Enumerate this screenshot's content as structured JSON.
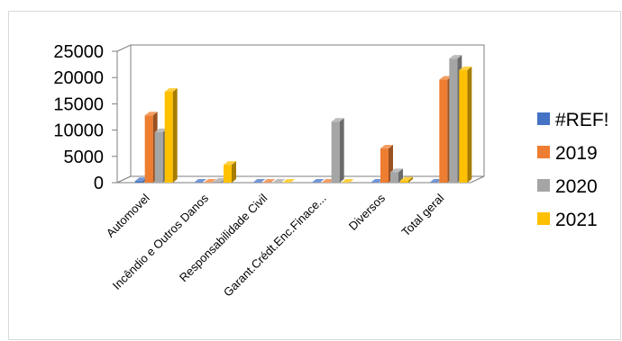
{
  "chart_data": {
    "type": "bar",
    "style": "3d-clustered-column",
    "categories": [
      "Automovel",
      "Incêndio e Outros Danos",
      "Responsabilidade Civil",
      "Garant.Crédt.Enc.Finace...",
      "Diversos",
      "Total geral"
    ],
    "series": [
      {
        "name": "#REF!",
        "color": "#4472c4",
        "values": [
          300,
          0,
          0,
          0,
          0,
          0
        ]
      },
      {
        "name": "2019",
        "color": "#ed7d31",
        "values": [
          12800,
          0,
          0,
          0,
          6500,
          19600
        ]
      },
      {
        "name": "2020",
        "color": "#a5a5a5",
        "values": [
          9600,
          200,
          0,
          11600,
          2000,
          23600
        ]
      },
      {
        "name": "2021",
        "color": "#ffc000",
        "values": [
          17300,
          3400,
          0,
          0,
          400,
          21400
        ]
      }
    ],
    "y_ticks": [
      "0",
      "5000",
      "10000",
      "15000",
      "20000",
      "25000"
    ],
    "ylim": [
      0,
      25000
    ],
    "legend_position": "right",
    "grid": false
  }
}
